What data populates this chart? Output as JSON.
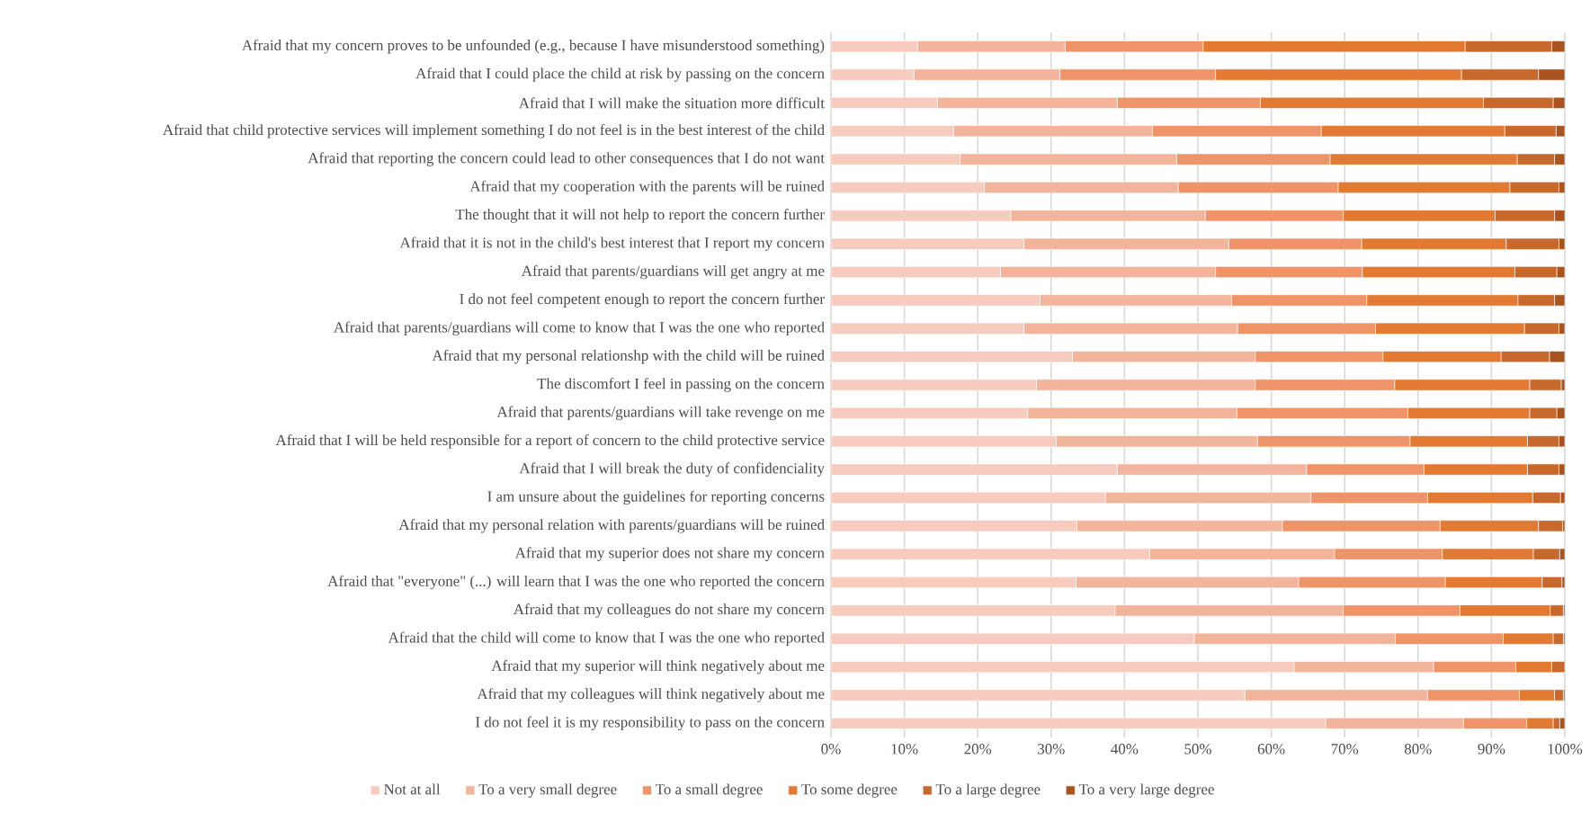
{
  "chart_data": {
    "type": "bar",
    "orientation": "horizontal",
    "stacked": true,
    "legend": "bottom",
    "grid": "x",
    "categories": [
      "Afraid that my concern proves to be unfounded (e.g., because I have misunderstood something)",
      "Afraid that I could place the child at risk by passing on the concern",
      "Afraid that I will make the situation more difficult",
      "Afraid that child protective services will implement something I do not feel is in the best interest of the child",
      "Afraid that reporting the concern could lead to other consequences that I do not want",
      "Afraid that my cooperation with the parents will be ruined",
      "The thought that it will not help to report the concern further",
      "Afraid that it is not in the child's best interest that I report my concern",
      "Afraid that parents/guardians will get angry at me",
      "I do not feel competent enough to report the concern further",
      "Afraid that parents/guardians will come to know that I was the one who reported",
      "Afraid that my personal relationshp with the child will be ruined",
      "The discomfort I feel in passing on the concern",
      "Afraid that parents/guardians will take revenge on me",
      "Afraid that I will be held responsible for a report of concern to the child protective service",
      "Afraid that I will break the duty of confidenciality",
      "I am unsure about the guidelines for reporting concerns",
      "Afraid that my personal relation with parents/guardians will be ruined",
      "Afraid that my superior does not share my concern",
      "Afraid that \"everyone\" (...) will learn that I was the one who reported the concern",
      "Afraid that my colleagues do not share my concern",
      "Afraid that the child will come to know that I was the one who reported",
      "Afraid that my superior will think negatively about me",
      "Afraid that my colleagues will think negatively about me",
      "I do not feel it is my responsibility to pass on the concern"
    ],
    "xlim": [
      0,
      100
    ],
    "xticks": [
      {
        "value": 0,
        "label": "0%"
      },
      {
        "value": 10,
        "label": "10%"
      },
      {
        "value": 20,
        "label": "20%"
      },
      {
        "value": 30,
        "label": "30%"
      },
      {
        "value": 40,
        "label": "40%"
      },
      {
        "value": 50,
        "label": "50%"
      },
      {
        "value": 60,
        "label": "60%"
      },
      {
        "value": 70,
        "label": "70%"
      },
      {
        "value": 80,
        "label": "80%"
      },
      {
        "value": 90,
        "label": "90%"
      },
      {
        "value": 100,
        "label": "100%"
      }
    ],
    "series": [
      {
        "name": "Not at all",
        "color": "#f7cbbd",
        "values": [
          11.8,
          11.3,
          14.5,
          16.7,
          17.6,
          20.9,
          24.5,
          26.3,
          23.1,
          28.5,
          26.3,
          32.9,
          28.0,
          26.8,
          30.7,
          39.0,
          37.4,
          33.5,
          43.4,
          33.4,
          38.7,
          49.5,
          63.1,
          56.4,
          67.4
        ]
      },
      {
        "name": "To a very small degree",
        "color": "#f2b49b",
        "values": [
          20.1,
          19.9,
          24.5,
          27.1,
          29.5,
          26.4,
          26.5,
          27.9,
          29.3,
          26.1,
          29.1,
          24.9,
          29.8,
          28.5,
          27.4,
          25.8,
          28.0,
          28.0,
          25.2,
          30.3,
          31.1,
          27.4,
          19.0,
          24.9,
          18.8
        ]
      },
      {
        "name": "To a small degree",
        "color": "#ef9368",
        "values": [
          18.8,
          21.2,
          19.5,
          23.0,
          20.9,
          21.8,
          18.8,
          18.1,
          20.0,
          18.4,
          18.8,
          17.4,
          19.0,
          23.3,
          20.8,
          16.0,
          15.9,
          21.5,
          14.7,
          20.0,
          15.9,
          14.7,
          11.2,
          12.5,
          8.6
        ]
      },
      {
        "name": "To some degree",
        "color": "#e27a33",
        "values": [
          35.7,
          33.5,
          30.4,
          25.0,
          25.5,
          23.4,
          20.7,
          19.7,
          20.8,
          20.6,
          20.3,
          16.1,
          18.4,
          16.6,
          16.0,
          14.1,
          14.3,
          13.4,
          12.4,
          13.2,
          12.3,
          6.8,
          4.9,
          4.8,
          3.6
        ]
      },
      {
        "name": "To a large degree",
        "color": "#c7692c",
        "values": [
          11.8,
          10.5,
          9.5,
          7.0,
          5.1,
          6.7,
          8.1,
          7.2,
          5.7,
          5.0,
          4.7,
          6.6,
          4.3,
          3.7,
          4.3,
          4.3,
          3.8,
          3.3,
          3.6,
          2.7,
          1.8,
          1.4,
          1.8,
          1.2,
          0.9
        ]
      },
      {
        "name": "To a very large degree",
        "color": "#a9541f",
        "values": [
          1.8,
          3.6,
          1.6,
          1.2,
          1.4,
          0.8,
          1.4,
          0.8,
          1.1,
          1.4,
          0.8,
          2.1,
          0.5,
          1.1,
          0.8,
          0.8,
          0.6,
          0.3,
          0.7,
          0.4,
          0.2,
          0.2,
          0,
          0.2,
          0.7
        ]
      }
    ]
  }
}
